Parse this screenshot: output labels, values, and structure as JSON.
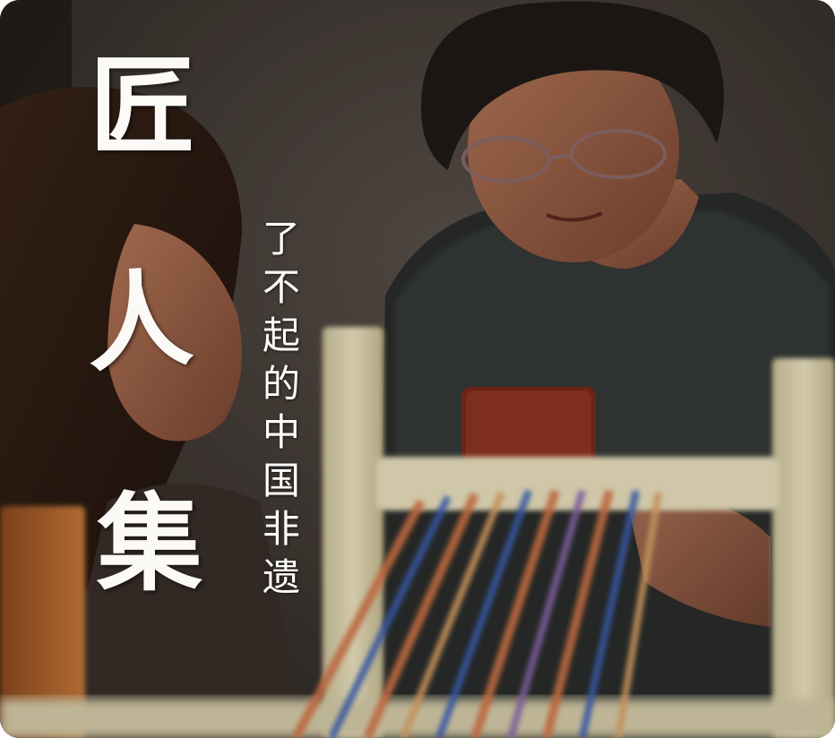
{
  "title": {
    "chars": [
      "匠",
      "人",
      "集"
    ]
  },
  "subtitle": {
    "chars": [
      "了",
      "不",
      "起",
      "的",
      "中",
      "国",
      "非",
      "遗"
    ]
  },
  "colors": {
    "background": "#3a3430",
    "text": "#fbfaf6",
    "thread_orange": "#d6774a",
    "thread_blue": "#3f63b8",
    "loom_wood": "#e6dcb6"
  }
}
